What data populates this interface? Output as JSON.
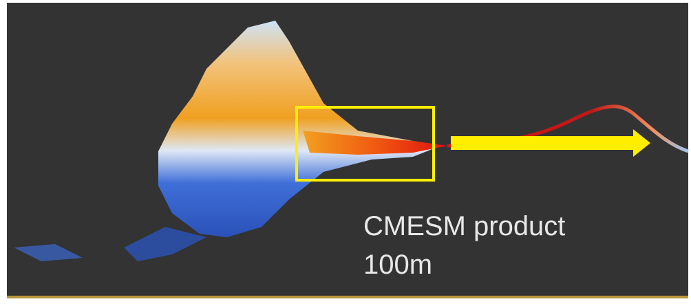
{
  "caption": {
    "line1": "CMESM product",
    "line2": "100m"
  }
}
